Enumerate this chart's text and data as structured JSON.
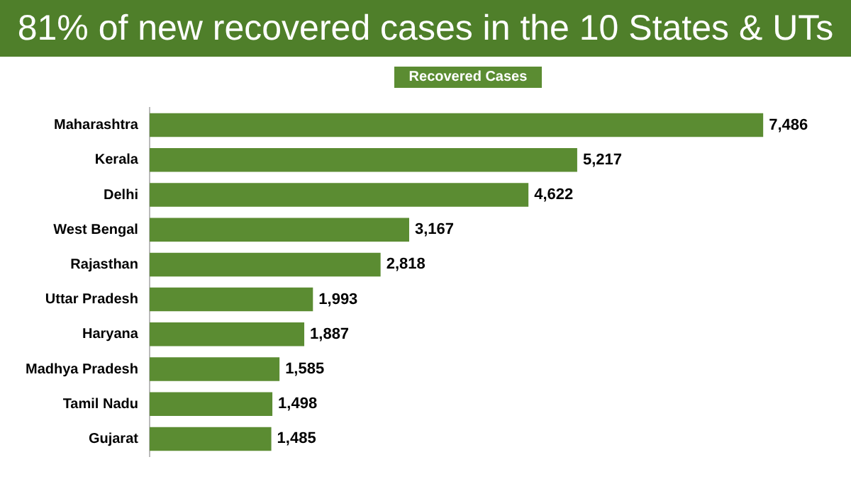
{
  "chart_data": {
    "type": "bar",
    "orientation": "horizontal",
    "title": "81% of new recovered cases in the 10 States & UTs",
    "categories": [
      "Maharashtra",
      "Kerala",
      "Delhi",
      "West Bengal",
      "Rajasthan",
      "Uttar Pradesh",
      "Haryana",
      "Madhya Pradesh",
      "Tamil Nadu",
      "Gujarat"
    ],
    "series": [
      {
        "name": "Recovered Cases",
        "color": "#5b8c32",
        "values": [
          7486,
          5217,
          4622,
          3167,
          2818,
          1993,
          1887,
          1585,
          1498,
          1485
        ],
        "value_labels": [
          "7,486",
          "5,217",
          "4,622",
          "3,167",
          "2,818",
          "1,993",
          "1,887",
          "1,585",
          "1,498",
          "1,485"
        ]
      }
    ],
    "legend": "top"
  }
}
